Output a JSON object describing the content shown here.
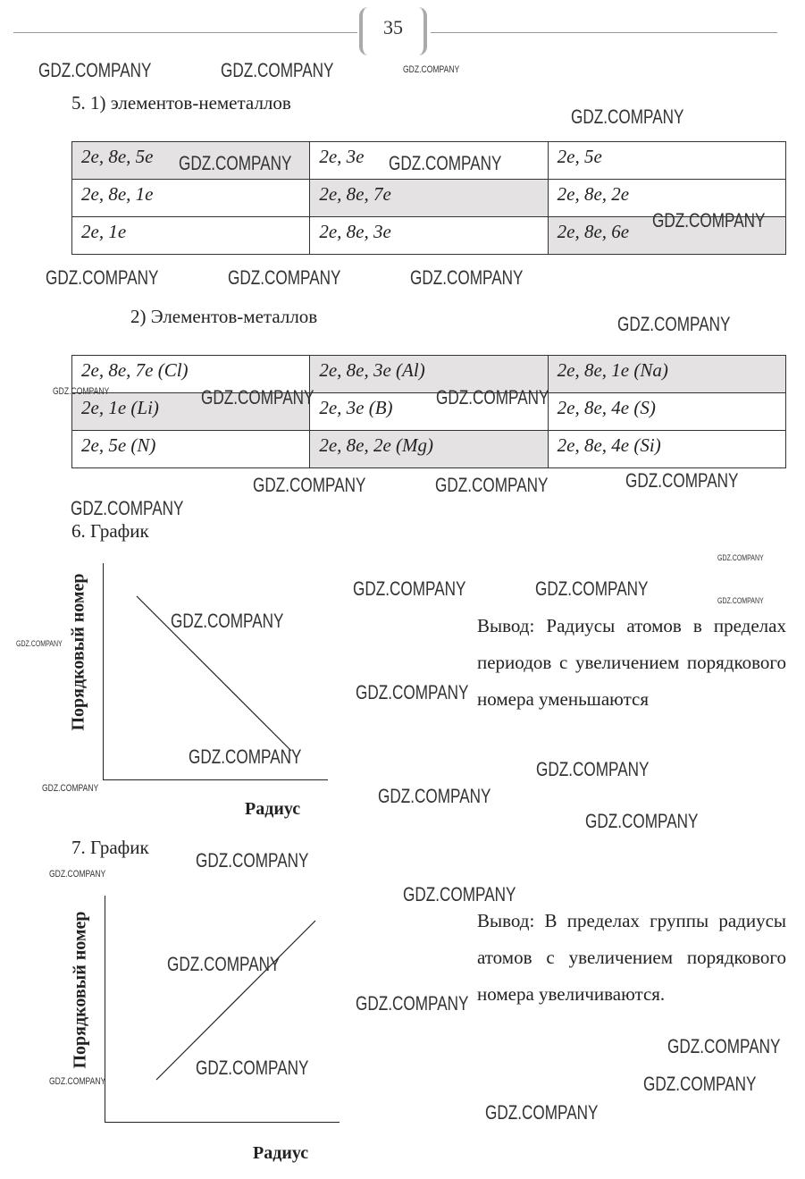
{
  "page_number": "35",
  "watermark": "GDZ.COMPANY",
  "section5": {
    "heading": "5.   1) элементов-неметаллов",
    "table1": [
      [
        "2e, 8e, 5e",
        "2e, 3e",
        "2e, 5e"
      ],
      [
        "2e, 8e, 1e",
        "2e, 8e, 7e",
        "2e, 8e, 2e"
      ],
      [
        "2e, 1e",
        "2e, 8e, 3e",
        "2e, 8e, 6e"
      ]
    ],
    "subheading": "2)  Элементов-металлов",
    "table2": [
      [
        "2e, 8e, 7e (Cl)",
        "2e, 8e, 3e (Al)",
        "2e, 8e, 1e (Na)"
      ],
      [
        "2e, 1e (Li)",
        "2e, 3e (B)",
        "2e, 8e, 4e (S)"
      ],
      [
        "2e, 5e (N)",
        "2e, 8e, 2e (Mg)",
        "2e, 8e, 4e (Si)"
      ]
    ]
  },
  "section6": {
    "heading": "6.   График",
    "ylabel": "Порядковый номер",
    "xlabel": "Радиус",
    "conclusion": "Вывод: Радиусы атомов в пределах периодов с увеличением порядкового номера уменьшаются",
    "trend": "decreasing"
  },
  "section7": {
    "heading": "7.   График",
    "ylabel": "Порядковый номер",
    "xlabel": "Радиус",
    "conclusion": "Вывод: В пределах группы радиусы атомов с увеличением порядкового номера увеличиваются.",
    "trend": "increasing"
  }
}
